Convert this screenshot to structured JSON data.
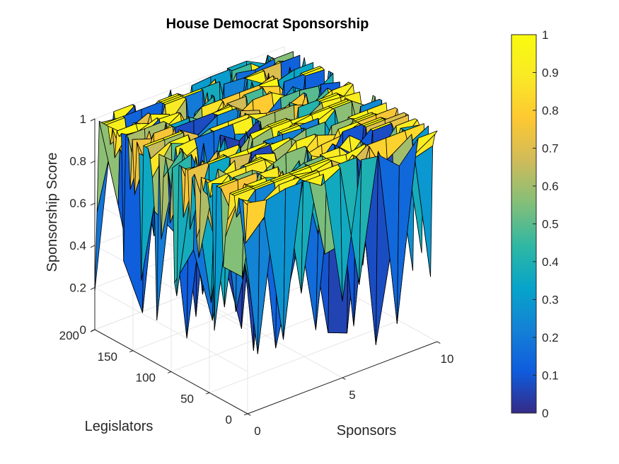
{
  "chart_data": {
    "type": "surface",
    "title": "House Democrat Sponsorship",
    "xlabel": "Sponsors",
    "ylabel": "Legislators",
    "zlabel": "Sponsorship Score",
    "xlim": [
      0,
      10
    ],
    "ylim": [
      0,
      200
    ],
    "zlim": [
      0,
      1
    ],
    "xticks": [
      "0",
      "5",
      "10"
    ],
    "yticks": [
      "0",
      "50",
      "100",
      "150",
      "200"
    ],
    "zticks": [
      "0",
      "0.2",
      "0.4",
      "0.6",
      "0.8",
      "1"
    ],
    "colorbar": {
      "colormap": "parula",
      "limits": [
        0,
        1
      ],
      "ticks": [
        "0",
        "0.1",
        "0.2",
        "0.3",
        "0.4",
        "0.5",
        "0.6",
        "0.7",
        "0.8",
        "0.9",
        "1"
      ]
    },
    "grid": true,
    "surface_note": "surface of 10 sponsors x ~200 legislators, mostly near 1 with dips",
    "colors": {
      "parula": [
        "#352a87",
        "#0f5cdd",
        "#1481d6",
        "#06a4ca",
        "#2eb7a4",
        "#87bf77",
        "#d1bb59",
        "#fec832",
        "#f9e926",
        "#f9fb0e"
      ]
    }
  }
}
